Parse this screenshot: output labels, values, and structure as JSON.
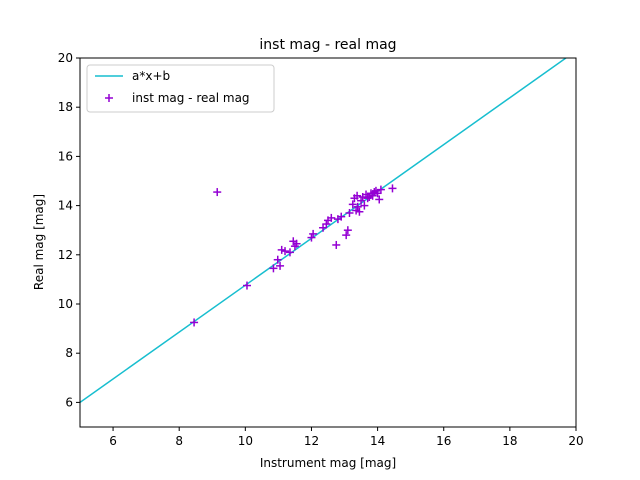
{
  "chart_data": {
    "type": "scatter",
    "title": "inst mag - real mag",
    "xlabel": "Instrument mag [mag]",
    "ylabel": "Real mag [mag]",
    "xlim": [
      5,
      20
    ],
    "ylim": [
      5,
      20
    ],
    "xticks": [
      "6",
      "8",
      "10",
      "12",
      "14",
      "16",
      "18",
      "20"
    ],
    "yticks": [
      "6",
      "8",
      "10",
      "12",
      "14",
      "16",
      "18",
      "20"
    ],
    "grid": false,
    "legend_position": "upper-left",
    "colors": {
      "line": "#17becf",
      "points": "#9400d3"
    },
    "series": [
      {
        "name": "a*x+b",
        "kind": "line",
        "x": [
          5.0,
          19.8
        ],
        "y": [
          6.0,
          20.1
        ]
      },
      {
        "name": "inst mag - real mag",
        "kind": "scatter",
        "marker": "+",
        "x": [
          8.45,
          9.15,
          10.05,
          10.85,
          10.98,
          11.05,
          11.1,
          11.2,
          11.35,
          11.45,
          11.5,
          11.55,
          12.0,
          12.05,
          12.35,
          12.45,
          12.5,
          12.6,
          12.75,
          12.8,
          12.9,
          13.05,
          13.1,
          13.15,
          13.25,
          13.3,
          13.35,
          13.38,
          13.4,
          13.45,
          13.5,
          13.55,
          13.6,
          13.65,
          13.7,
          13.75,
          13.8,
          13.85,
          13.9,
          13.95,
          14.0,
          14.05,
          14.1,
          14.45
        ],
        "y": [
          9.25,
          14.55,
          10.75,
          11.45,
          11.8,
          11.55,
          12.2,
          12.15,
          12.1,
          12.55,
          12.35,
          12.45,
          12.7,
          12.85,
          13.1,
          13.25,
          13.4,
          13.5,
          12.4,
          13.45,
          13.55,
          12.8,
          13.0,
          13.7,
          14.05,
          14.3,
          13.8,
          14.4,
          13.95,
          13.75,
          14.2,
          14.35,
          14.0,
          14.45,
          14.3,
          14.35,
          14.5,
          14.4,
          14.55,
          14.6,
          14.5,
          14.25,
          14.65,
          14.7
        ]
      }
    ]
  }
}
